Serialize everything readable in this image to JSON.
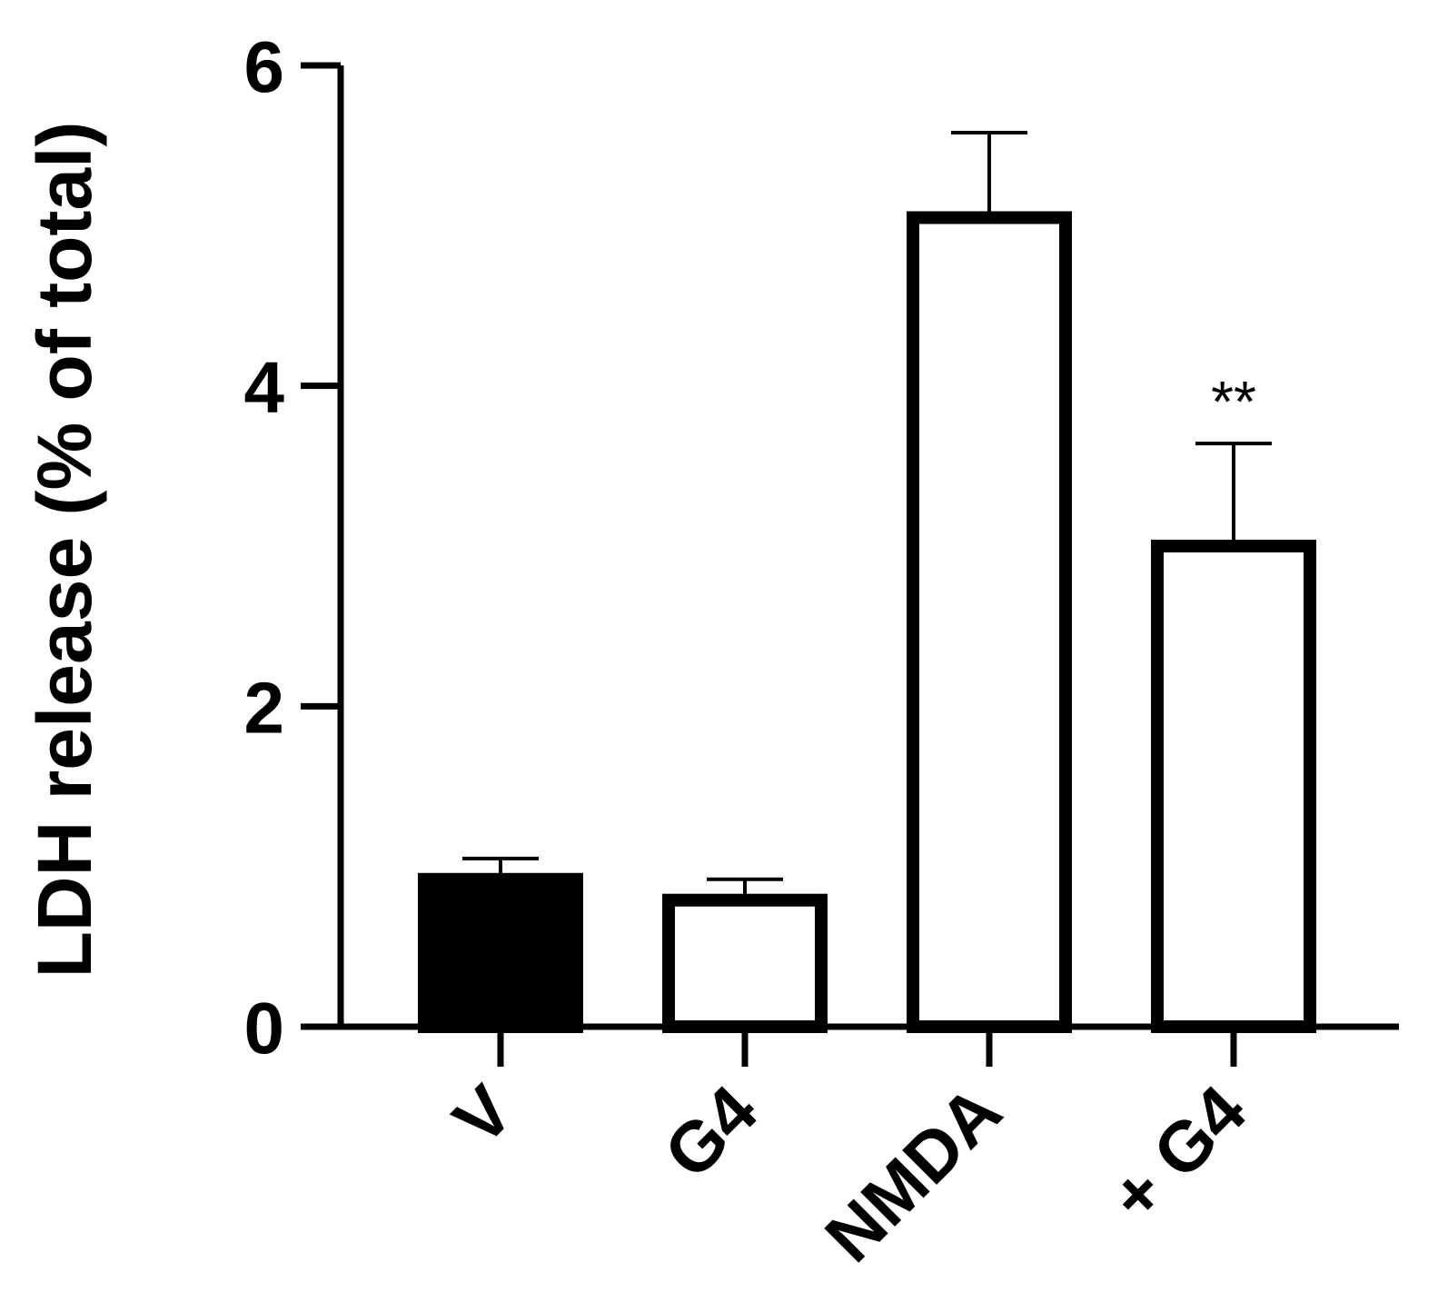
{
  "chart_data": {
    "type": "bar",
    "ylabel": "LDH release (% of total)",
    "xlabel": "",
    "ylim": [
      0,
      6
    ],
    "yticks": [
      0,
      2,
      4,
      6
    ],
    "categories": [
      "V",
      "G4",
      "NMDA",
      "+ G4"
    ],
    "values": [
      0.92,
      0.79,
      5.05,
      3.0
    ],
    "errors": [
      0.13,
      0.13,
      0.53,
      0.64
    ],
    "fills": [
      "#000000",
      "#ffffff",
      "#ffffff",
      "#ffffff"
    ],
    "annotations": [
      "",
      "",
      "",
      "**"
    ],
    "grid": false,
    "legend": "none"
  }
}
